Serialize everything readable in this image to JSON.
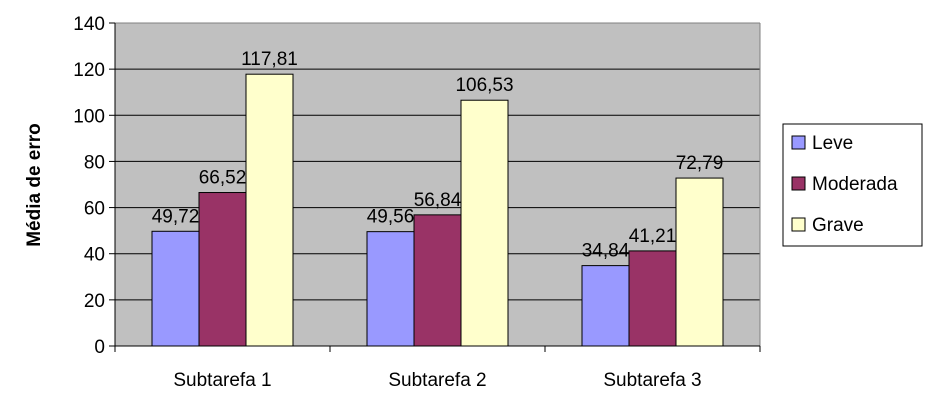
{
  "chart_data": {
    "type": "bar",
    "title": "",
    "xlabel": "",
    "ylabel": "Média de erro",
    "ylim": [
      0,
      140
    ],
    "ytick_step": 20,
    "yticks": [
      "0",
      "20",
      "40",
      "60",
      "80",
      "100",
      "120",
      "140"
    ],
    "grid": true,
    "legend_position": "right",
    "plot_background": "#c0c0c0",
    "categories": [
      "Subtarefa 1",
      "Subtarefa 2",
      "Subtarefa 3"
    ],
    "series": [
      {
        "name": "Leve",
        "color": "#9999ff",
        "values": [
          49.72,
          49.56,
          34.84
        ],
        "labels": [
          "49,72",
          "49,56",
          "34,84"
        ]
      },
      {
        "name": "Moderada",
        "color": "#993366",
        "values": [
          66.52,
          56.84,
          41.21
        ],
        "labels": [
          "66,52",
          "56,84",
          "41,21"
        ]
      },
      {
        "name": "Grave",
        "color": "#ffffcc",
        "values": [
          117.81,
          106.53,
          72.79
        ],
        "labels": [
          "117,81",
          "106,53",
          "72,79"
        ]
      }
    ]
  }
}
